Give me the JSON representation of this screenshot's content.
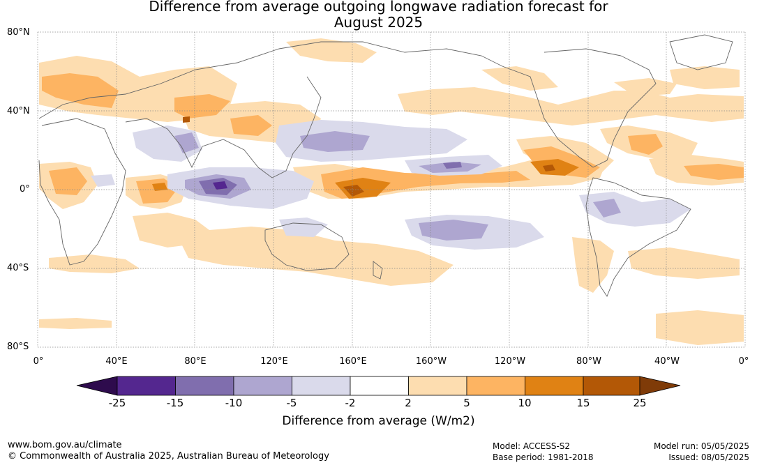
{
  "title": {
    "line1": "Difference from average outgoing longwave radiation forecast for",
    "line2": "August 2025"
  },
  "map": {
    "lat_labels": [
      "80°N",
      "40°N",
      "0°",
      "40°S",
      "80°S"
    ],
    "lon_labels": [
      "0°",
      "40°E",
      "80°E",
      "120°E",
      "160°E",
      "160°W",
      "120°W",
      "80°W",
      "40°W",
      "0°"
    ]
  },
  "colorbar": {
    "title": "Difference from average (W/m2)",
    "ticks": [
      "-25",
      "-15",
      "-10",
      "-5",
      "-2",
      "2",
      "5",
      "10",
      "15",
      "25"
    ],
    "bins": [
      {
        "range": "< -25",
        "color": "#2e0b4d"
      },
      {
        "range": "-25 to -15",
        "color": "#54278f"
      },
      {
        "range": "-15 to -10",
        "color": "#806eae"
      },
      {
        "range": "-10 to -5",
        "color": "#aea6d0"
      },
      {
        "range": "-5 to -2",
        "color": "#dadaeb"
      },
      {
        "range": "-2 to 2",
        "color": "#ffffff"
      },
      {
        "range": "2 to 5",
        "color": "#fdddb0"
      },
      {
        "range": "5 to 10",
        "color": "#fdb462"
      },
      {
        "range": "10 to 15",
        "color": "#e08214"
      },
      {
        "range": "15 to 25",
        "color": "#b35806"
      },
      {
        "range": "> 25",
        "color": "#7f3b08"
      }
    ]
  },
  "footer": {
    "website": "www.bom.gov.au/climate",
    "copyright": "© Commonwealth of Australia 2025, Australian Bureau of Meteorology",
    "model": "Model: ACCESS-S2",
    "base_period": "Base period: 1981-2018",
    "model_run": "Model run: 05/05/2025",
    "issued": "Issued: 08/05/2025"
  }
}
